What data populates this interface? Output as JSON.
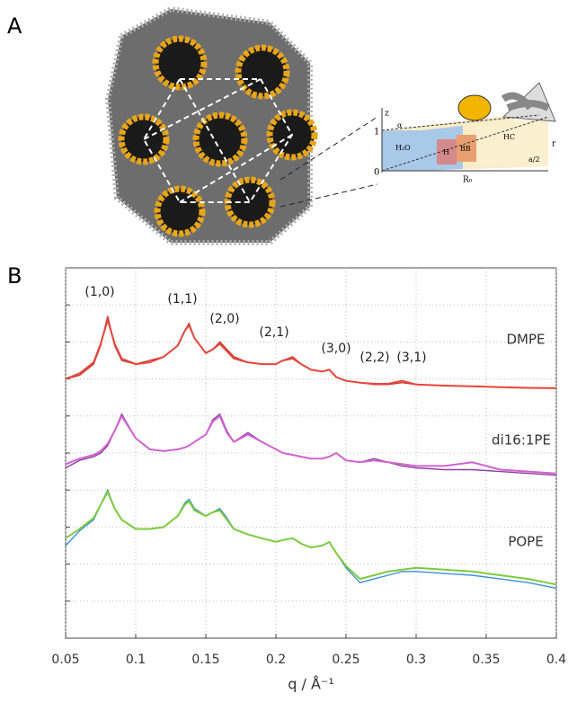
{
  "figure_a": {
    "panel_label": "A",
    "labels": {
      "z": "z",
      "one": "1",
      "zero": "0",
      "water": "H₂O",
      "head": "H",
      "backbone": "BB",
      "chains": "HC",
      "r": "r",
      "radius": "R₀",
      "half": "a/2",
      "alpha": "α"
    }
  },
  "chart_data": {
    "type": "line",
    "panel_label": "B",
    "xlabel": "q / Å⁻¹",
    "x": [
      0.05,
      0.06,
      0.07,
      0.075,
      0.08,
      0.085,
      0.09,
      0.1,
      0.11,
      0.12,
      0.13,
      0.135,
      0.138,
      0.142,
      0.15,
      0.155,
      0.16,
      0.165,
      0.17,
      0.18,
      0.19,
      0.2,
      0.205,
      0.212,
      0.218,
      0.225,
      0.233,
      0.238,
      0.243,
      0.25,
      0.26,
      0.27,
      0.28,
      0.29,
      0.3,
      0.32,
      0.34,
      0.36,
      0.38,
      0.4
    ],
    "series": [
      {
        "name": "DMPE",
        "color": "#c0392b",
        "fit_color": "#e8453c",
        "values": [
          7.0,
          7.1,
          7.4,
          7.9,
          8.7,
          7.9,
          7.5,
          7.4,
          7.5,
          7.6,
          7.9,
          8.3,
          8.5,
          8.1,
          7.7,
          7.8,
          8.0,
          7.8,
          7.6,
          7.45,
          7.4,
          7.4,
          7.5,
          7.6,
          7.4,
          7.25,
          7.2,
          7.25,
          7.05,
          6.95,
          6.9,
          6.85,
          6.85,
          6.9,
          6.85,
          6.82,
          6.8,
          6.78,
          6.76,
          6.75
        ],
        "fit": [
          7.0,
          7.15,
          7.45,
          7.95,
          8.6,
          7.95,
          7.55,
          7.4,
          7.45,
          7.6,
          7.9,
          8.3,
          8.45,
          8.1,
          7.7,
          7.8,
          7.95,
          7.75,
          7.55,
          7.45,
          7.4,
          7.4,
          7.5,
          7.55,
          7.4,
          7.25,
          7.2,
          7.25,
          7.05,
          6.95,
          6.9,
          6.87,
          6.87,
          6.95,
          6.85,
          6.82,
          6.8,
          6.78,
          6.76,
          6.75
        ]
      },
      {
        "name": "di16:1PE",
        "color": "#8e3fa0",
        "fit_color": "#d063d0",
        "values": [
          4.6,
          4.8,
          4.9,
          5.0,
          5.2,
          5.6,
          6.05,
          5.4,
          5.1,
          5.05,
          5.1,
          5.15,
          5.2,
          5.3,
          5.5,
          5.9,
          6.05,
          5.6,
          5.3,
          5.55,
          5.3,
          5.1,
          5.0,
          4.95,
          4.9,
          4.85,
          4.85,
          4.9,
          5.0,
          4.8,
          4.75,
          4.85,
          4.75,
          4.65,
          4.6,
          4.55,
          4.55,
          4.5,
          4.45,
          4.4
        ],
        "fit": [
          4.7,
          4.85,
          4.95,
          5.05,
          5.25,
          5.6,
          6.0,
          5.4,
          5.1,
          5.05,
          5.1,
          5.15,
          5.2,
          5.3,
          5.5,
          5.85,
          6.0,
          5.55,
          5.3,
          5.5,
          5.3,
          5.1,
          5.0,
          4.95,
          4.9,
          4.85,
          4.85,
          4.9,
          5.0,
          4.8,
          4.75,
          4.8,
          4.75,
          4.7,
          4.65,
          4.65,
          4.75,
          4.55,
          4.5,
          4.45
        ]
      },
      {
        "name": "POPE",
        "color": "#3a8fd6",
        "fit_color": "#7ccc3a",
        "values": [
          2.5,
          2.9,
          3.2,
          3.6,
          4.0,
          3.5,
          3.2,
          2.95,
          2.95,
          3.0,
          3.3,
          3.65,
          3.75,
          3.5,
          3.3,
          3.4,
          3.5,
          3.25,
          2.95,
          2.8,
          2.7,
          2.6,
          2.65,
          2.7,
          2.55,
          2.45,
          2.5,
          2.6,
          2.3,
          1.9,
          1.5,
          1.6,
          1.7,
          1.8,
          1.8,
          1.75,
          1.7,
          1.6,
          1.5,
          1.35
        ],
        "fit": [
          2.7,
          2.95,
          3.25,
          3.6,
          3.95,
          3.5,
          3.2,
          2.95,
          2.95,
          3.0,
          3.3,
          3.6,
          3.7,
          3.45,
          3.3,
          3.4,
          3.45,
          3.2,
          2.95,
          2.8,
          2.7,
          2.6,
          2.65,
          2.7,
          2.55,
          2.45,
          2.5,
          2.6,
          2.3,
          1.95,
          1.6,
          1.7,
          1.8,
          1.85,
          1.9,
          1.85,
          1.8,
          1.7,
          1.6,
          1.45
        ]
      }
    ],
    "annotations": [
      "(1,0)",
      "(1,1)",
      "(2,0)",
      "(2,1)",
      "(3,0)",
      "(2,2)",
      "(3,1)"
    ],
    "xlim": [
      0.05,
      0.4
    ],
    "xticks": [
      0.05,
      0.1,
      0.15,
      0.2,
      0.25,
      0.3,
      0.35,
      0.4
    ],
    "ylim": [
      0,
      10
    ],
    "yticks": [
      1,
      2,
      3,
      4,
      5,
      6,
      7,
      8,
      9
    ],
    "grid": true
  }
}
